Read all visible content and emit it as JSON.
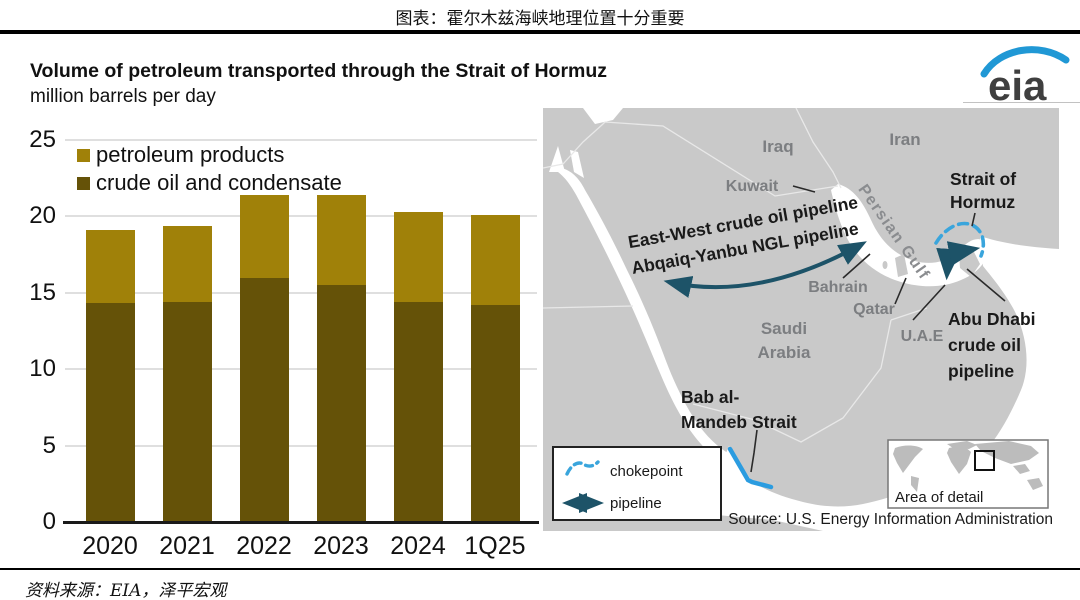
{
  "header": {
    "title": "图表：霍尔木兹海峡地理位置十分重要"
  },
  "footer": {
    "source": "资料来源：EIA，泽平宏观"
  },
  "logo": {
    "text": "eia",
    "swoosh_color": "#2098d5"
  },
  "chart": {
    "title": "Volume of petroleum transported through the Strait of Hormuz",
    "subtitle": "million barrels per day",
    "legend": {
      "products": "petroleum products",
      "crude": "crude oil and condensate"
    }
  },
  "chart_data": {
    "type": "bar",
    "stacked": true,
    "title": "Volume of petroleum transported through the Strait of Hormuz",
    "ylabel": "million barrels per day",
    "categories": [
      "2020",
      "2021",
      "2022",
      "2023",
      "2024",
      "1Q25"
    ],
    "series": [
      {
        "name": "crude oil and condensate",
        "color": "#655208",
        "values": [
          14.3,
          14.4,
          16.0,
          15.5,
          14.4,
          14.2
        ]
      },
      {
        "name": "petroleum products",
        "color": "#A08109",
        "values": [
          4.8,
          5.0,
          5.4,
          5.9,
          5.9,
          5.9
        ]
      }
    ],
    "totals": [
      19.1,
      19.4,
      21.4,
      21.4,
      20.3,
      20.1
    ],
    "ylim": [
      0,
      25
    ],
    "yticks": [
      0,
      5,
      10,
      15,
      20,
      25
    ],
    "grid": true,
    "legend_position": "top-left"
  },
  "map": {
    "labels": {
      "iraq": "Iraq",
      "iran": "Iran",
      "kuwait": "Kuwait",
      "bahrain": "Bahrain",
      "qatar": "Qatar",
      "saudi1": "Saudi",
      "saudi2": "Arabia",
      "uae": "U.A.E",
      "persian_gulf": "Persian Gulf",
      "strait1": "Strait of",
      "strait2": "Hormuz",
      "abudhabi1": "Abu Dhabi",
      "abudhabi2": "crude oil",
      "abudhabi3": "pipeline",
      "eastwest1": "East-West crude oil pipeline",
      "eastwest2": "Abqaiq-Yanbu NGL pipeline",
      "bab1": "Bab al-",
      "bab2": "Mandeb Strait"
    },
    "legend": {
      "chokepoint": "chokepoint",
      "pipeline": "pipeline"
    },
    "inset": {
      "label": "Area of detail"
    },
    "source": "Source: U.S. Energy Information Administration",
    "colors": {
      "land": "#C9C9C9",
      "chokepoint": "#3AA5DC",
      "pipeline": "#1D5368",
      "bab_line": "#2B9CE0",
      "label_gray": "#7C7E81"
    }
  }
}
